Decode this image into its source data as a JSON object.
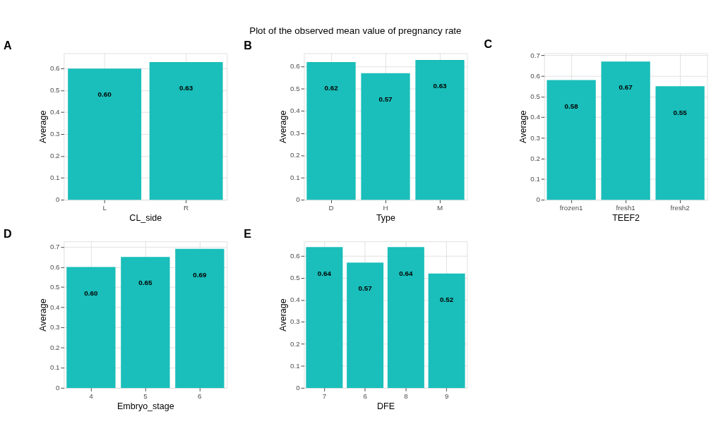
{
  "chart_data": [
    {
      "type": "bar",
      "annotations": [
        "A"
      ],
      "xlabel": "CL_side",
      "ylabel": "Average",
      "categories": [
        "L",
        "R"
      ],
      "values": [
        0.6,
        0.63
      ],
      "value_labels": [
        "0.60",
        "0.63"
      ],
      "color": "#1abeba",
      "ylim": [
        0,
        0.67
      ],
      "yticks": [
        0,
        0.1,
        0.2,
        0.3,
        0.4,
        0.5,
        0.6
      ],
      "grid": true
    },
    {
      "type": "bar",
      "title": "Plot of the observed mean value of pregnancy rate",
      "annotations": [
        "B"
      ],
      "xlabel": "Type",
      "ylabel": "Average",
      "categories": [
        "D",
        "H",
        "M"
      ],
      "values": [
        0.62,
        0.57,
        0.63
      ],
      "value_labels": [
        "0.62",
        "0.57",
        "0.63"
      ],
      "color": "#1abeba",
      "ylim": [
        0,
        0.66
      ],
      "yticks": [
        0,
        0.1,
        0.2,
        0.3,
        0.4,
        0.5,
        0.6
      ],
      "grid": true
    },
    {
      "type": "bar",
      "annotations": [
        "C"
      ],
      "xlabel": "TEEF2",
      "ylabel": "Average",
      "categories": [
        "frozen1",
        "fresh1",
        "fresh2"
      ],
      "values": [
        0.58,
        0.67,
        0.55
      ],
      "value_labels": [
        "0.58",
        "0.67",
        "0.55"
      ],
      "color": "#1abeba",
      "ylim": [
        0,
        0.71
      ],
      "yticks": [
        0,
        0.1,
        0.2,
        0.3,
        0.4,
        0.5,
        0.6,
        0.7
      ],
      "grid": true
    },
    {
      "type": "bar",
      "annotations": [
        "D"
      ],
      "xlabel": "Embryo_stage",
      "ylabel": "Average",
      "categories": [
        "4",
        "5",
        "6"
      ],
      "values": [
        0.6,
        0.65,
        0.69
      ],
      "value_labels": [
        "0.60",
        "0.65",
        "0.69"
      ],
      "color": "#1abeba",
      "ylim": [
        0,
        0.727
      ],
      "yticks": [
        0,
        0.1,
        0.2,
        0.3,
        0.4,
        0.5,
        0.6,
        0.7
      ],
      "grid": true
    },
    {
      "type": "bar",
      "annotations": [
        "E"
      ],
      "xlabel": "DFE",
      "ylabel": "Average",
      "categories": [
        "7",
        "6",
        "8",
        "9"
      ],
      "values": [
        0.64,
        0.57,
        0.64,
        0.52
      ],
      "value_labels": [
        "0.64",
        "0.57",
        "0.64",
        "0.52"
      ],
      "color": "#1abeba",
      "ylim": [
        0,
        0.666
      ],
      "yticks": [
        0,
        0.1,
        0.2,
        0.3,
        0.4,
        0.5,
        0.6
      ],
      "grid": true
    }
  ]
}
